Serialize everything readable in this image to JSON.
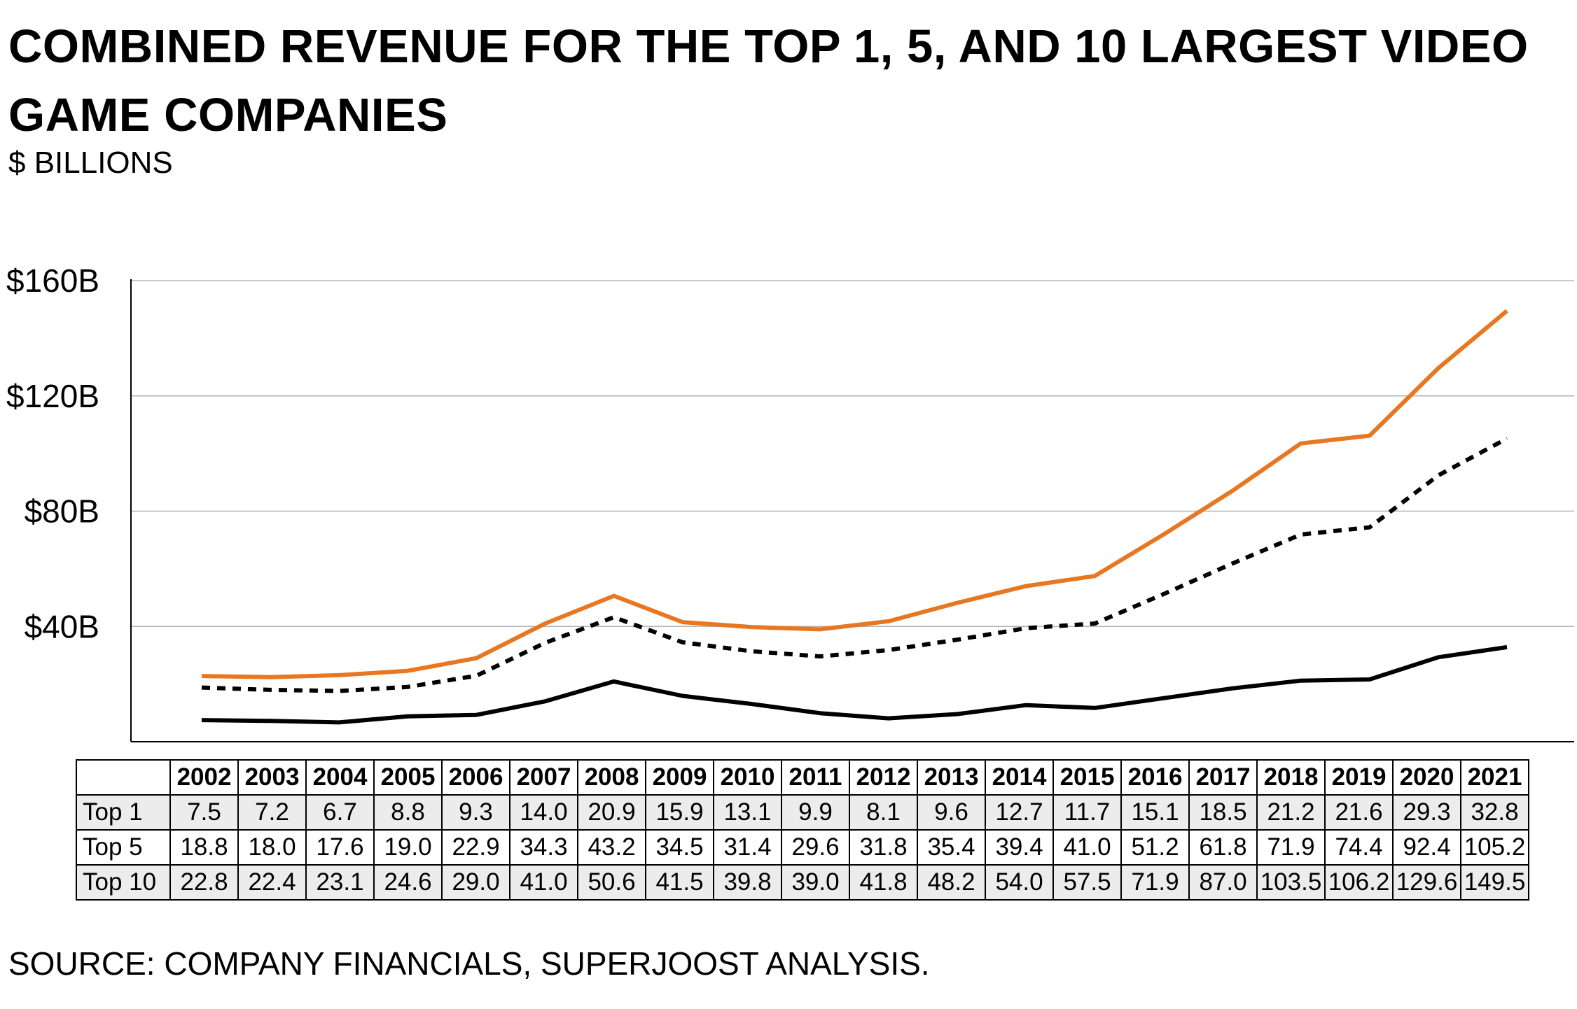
{
  "title": "COMBINED REVENUE FOR THE TOP 1, 5, AND 10 LARGEST VIDEO GAME COMPANIES",
  "subtitle": "$ BILLIONS",
  "source": "SOURCE: COMPANY FINANCIALS, SUPERJOOST ANALYSIS.",
  "colors": {
    "top1": "#000000",
    "top5": "#000000",
    "top10": "#e87722",
    "grid": "#b3b3b3"
  },
  "chart_data": {
    "type": "line",
    "title": "COMBINED REVENUE FOR THE TOP 1, 5, AND 10 LARGEST VIDEO GAME COMPANIES",
    "ylabel": "$ BILLIONS",
    "xlabel": "",
    "ylim": [
      0,
      160
    ],
    "yticks": [
      40,
      80,
      120,
      160
    ],
    "ytick_labels": [
      "$40B",
      "$80B",
      "$120B",
      "$160B"
    ],
    "grid": "horizontal",
    "x": [
      "2002",
      "2003",
      "2004",
      "2005",
      "2006",
      "2007",
      "2008",
      "2009",
      "2010",
      "2011",
      "2012",
      "2013",
      "2014",
      "2015",
      "2016",
      "2017",
      "2018",
      "2019",
      "2020",
      "2021"
    ],
    "series": [
      {
        "name": "Top 1",
        "style": "solid",
        "color": "#000000",
        "values": [
          7.5,
          7.2,
          6.7,
          8.8,
          9.3,
          14.0,
          20.9,
          15.9,
          13.1,
          9.9,
          8.1,
          9.6,
          12.7,
          11.7,
          15.1,
          18.5,
          21.2,
          21.6,
          29.3,
          32.8
        ],
        "labels": [
          "7.5",
          "7.2",
          "6.7",
          "8.8",
          "9.3",
          "14.0",
          "20.9",
          "15.9",
          "13.1",
          "9.9",
          "8.1",
          "9.6",
          "12.7",
          "11.7",
          "15.1",
          "18.5",
          "21.2",
          "21.6",
          "29.3",
          "32.8"
        ]
      },
      {
        "name": "Top 5",
        "style": "dotted",
        "color": "#000000",
        "values": [
          18.8,
          18.0,
          17.6,
          19.0,
          22.9,
          34.3,
          43.2,
          34.5,
          31.4,
          29.6,
          31.8,
          35.4,
          39.4,
          41.0,
          51.2,
          61.8,
          71.9,
          74.4,
          92.4,
          105.2
        ],
        "labels": [
          "18.8",
          "18.0",
          "17.6",
          "19.0",
          "22.9",
          "34.3",
          "43.2",
          "34.5",
          "31.4",
          "29.6",
          "31.8",
          "35.4",
          "39.4",
          "41.0",
          "51.2",
          "61.8",
          "71.9",
          "74.4",
          "92.4",
          "105.2"
        ]
      },
      {
        "name": "Top 10",
        "style": "solid",
        "color": "#e87722",
        "values": [
          22.8,
          22.4,
          23.1,
          24.6,
          29.0,
          41.0,
          50.6,
          41.5,
          39.8,
          39.0,
          41.8,
          48.2,
          54.0,
          57.5,
          71.9,
          87.0,
          103.5,
          106.2,
          129.6,
          149.5
        ],
        "labels": [
          "22.8",
          "22.4",
          "23.1",
          "24.6",
          "29.0",
          "41.0",
          "50.6",
          "41.5",
          "39.8",
          "39.0",
          "41.8",
          "48.2",
          "54.0",
          "57.5",
          "71.9",
          "87.0",
          "103.5",
          "106.2",
          "129.6",
          "149.5"
        ]
      }
    ]
  }
}
